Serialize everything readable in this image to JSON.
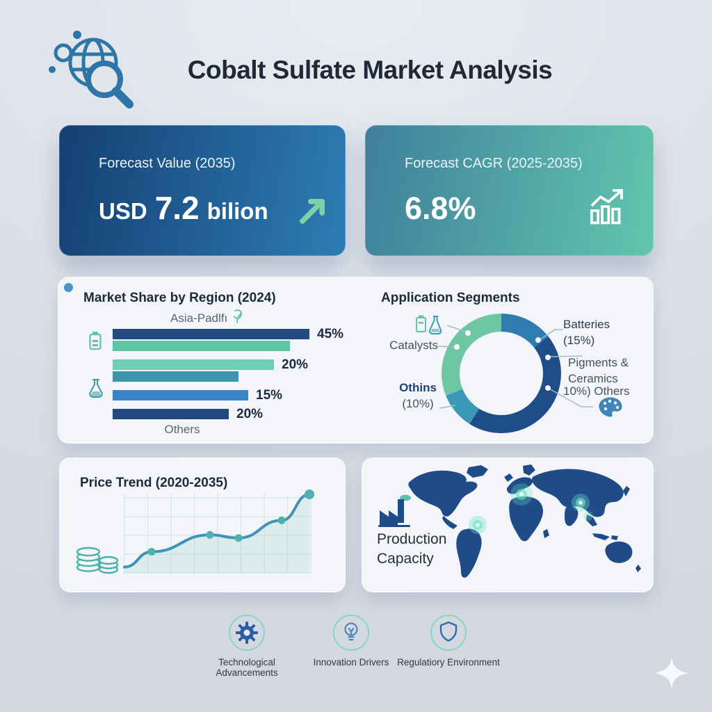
{
  "header": {
    "title": "Cobalt Sulfate Market Analysis",
    "logo": "globe-magnifier-icon"
  },
  "kpis": [
    {
      "label": "Forecast Value (2035)",
      "value_prefix": "USD",
      "value_number": "7.2",
      "value_suffix": "bilion",
      "icon": "up-right-arrow-icon"
    },
    {
      "label": "Forecast CAGR (2025-2035)",
      "value": "6.8%",
      "icon": "growth-bar-chart-icon"
    }
  ],
  "region_panel": {
    "title": "Market Share by Region (2024)",
    "axis_top_label": "Asia-Padlfı",
    "axis_bottom_label": "Others"
  },
  "segments_panel": {
    "title": "Application Segments",
    "callouts": {
      "batteries": "Batteries",
      "batteries_pct": "(15%)",
      "pigments": "Pigments & Ceramics",
      "others_right_pct": "10%)",
      "others_right": "Others",
      "catalysts": "Catalysts",
      "others_left": "Othins",
      "others_left_pct": "(10%)"
    }
  },
  "price_panel": {
    "title": "Price Trend (2020-2035)"
  },
  "production_panel": {
    "line1": "Production",
    "line2": "Capacity"
  },
  "footer": {
    "items": [
      {
        "icon": "gear-icon",
        "label": "Technological Advancements"
      },
      {
        "icon": "lightbulb-icon",
        "label": "Innovation Drivers"
      },
      {
        "icon": "shield-icon",
        "label": "Regulatiory Environment"
      }
    ]
  },
  "colors": {
    "navy": "#24497e",
    "deep_navy": "#1e4d88",
    "blue": "#2e7cb0",
    "mid_blue": "#3b82c6",
    "teal": "#3e93ad",
    "donut_teal": "#3b98b6",
    "green": "#5fc3a4",
    "light_green": "#6fcfb2",
    "card_blue_start": "#153f72",
    "card_blue_end": "#2d7db5",
    "card_teal_start": "#3f7f9c",
    "card_teal_end": "#62c6ae",
    "panel_bg": "#f3f5f8",
    "page_bg": "#dbe0e7",
    "arrow_green": "#7ed0a8"
  },
  "chart_data": [
    {
      "type": "bar",
      "title": "Market Share by Region (2024)",
      "orientation": "horizontal",
      "top_category_label": "Asia-Padlfı",
      "bottom_category_label": "Others",
      "bars": [
        {
          "group": 0,
          "length_pct": 100,
          "label": "45%",
          "color": "#24497e"
        },
        {
          "group": 0,
          "length_pct": 90,
          "label": "",
          "color": "#5fc3a4"
        },
        {
          "group": 1,
          "length_pct": 82,
          "label": "20%",
          "color": "#6fcfb2"
        },
        {
          "group": 1,
          "length_pct": 64,
          "label": "",
          "color": "#3e93ad"
        },
        {
          "group": 2,
          "length_pct": 69,
          "label": "15%",
          "color": "#3b82c6"
        },
        {
          "group": 3,
          "length_pct": 59,
          "label": "20%",
          "color": "#24497e"
        }
      ]
    },
    {
      "type": "pie",
      "subtype": "donut",
      "title": "Application Segments",
      "segments": [
        {
          "name": "Batteries",
          "shown_label": "Batteries (15%)",
          "angle_deg": 52,
          "color": "#2e7cb0"
        },
        {
          "name": "Pigments & Ceramics",
          "shown_label": "Pigments & Ceramics",
          "angle_deg": 160,
          "color": "#1e4d88"
        },
        {
          "name": "Others",
          "shown_label": "10%) Others",
          "angle_deg": 36,
          "color": "#3b98b6"
        },
        {
          "name": "Catalysts",
          "shown_label": "Catalysts / Othins (10%)",
          "angle_deg": 112,
          "color": "#6ec6a4"
        }
      ]
    },
    {
      "type": "line",
      "title": "Price Trend (2020-2035)",
      "x_range_label": "2020-2035",
      "grid": true,
      "points": [
        {
          "x": 0.0,
          "y": 0.05
        },
        {
          "x": 0.147,
          "y": 0.25
        },
        {
          "x": 0.462,
          "y": 0.47
        },
        {
          "x": 0.617,
          "y": 0.43
        },
        {
          "x": 0.85,
          "y": 0.66
        },
        {
          "x": 1.0,
          "y": 1.0
        }
      ],
      "marker_indices": [
        1,
        2,
        3,
        4,
        5
      ]
    }
  ]
}
